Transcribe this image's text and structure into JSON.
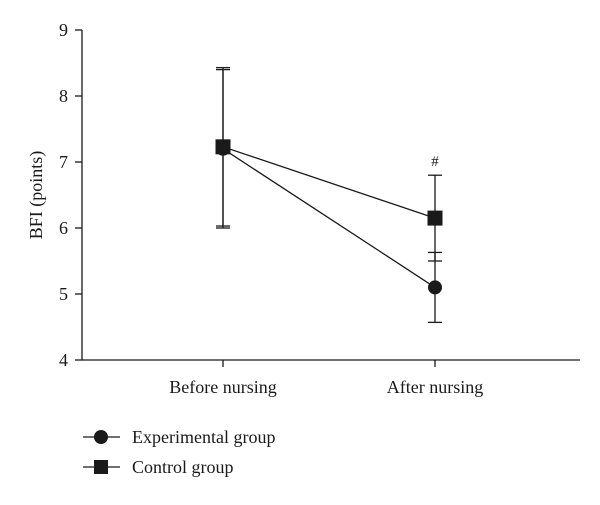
{
  "chart_data": {
    "type": "line",
    "title": "",
    "xlabel": "",
    "ylabel": "BFI (points)",
    "categories": [
      "Before nursing",
      "After nursing"
    ],
    "ylim": [
      4,
      9
    ],
    "yticks": [
      "4",
      "5",
      "6",
      "7",
      "8",
      "9"
    ],
    "grid": false,
    "legend_position": "bottom-left",
    "series": [
      {
        "name": "Experimental group",
        "marker": "circle",
        "values": [
          7.2,
          5.1
        ],
        "error_low": [
          6.0,
          4.57
        ],
        "error_high": [
          8.4,
          5.63
        ],
        "color": "#1a1a1a"
      },
      {
        "name": "Control group",
        "marker": "square",
        "values": [
          7.23,
          6.15
        ],
        "error_low": [
          6.03,
          5.5
        ],
        "error_high": [
          8.43,
          6.8
        ],
        "color": "#1a1a1a"
      }
    ],
    "annotations": [
      {
        "text": "#",
        "category": "After nursing",
        "series": "Control group"
      }
    ]
  }
}
